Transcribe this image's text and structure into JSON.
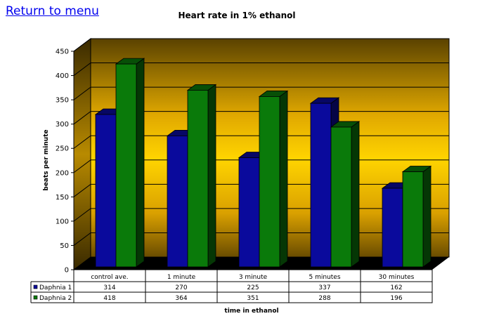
{
  "nav": {
    "return_label": "Return to menu"
  },
  "chart_data": {
    "type": "bar",
    "title": "Heart rate in 1% ethanol",
    "xlabel": "time in ethanol",
    "ylabel": "beats per minute",
    "ylim": [
      0,
      450
    ],
    "yticks": [
      "0",
      "50",
      "100",
      "150",
      "200",
      "250",
      "300",
      "350",
      "400",
      "450"
    ],
    "categories": [
      "control ave.",
      "1 minute",
      "3 minute",
      "5 minutes",
      "30 minutes"
    ],
    "series": [
      {
        "name": "Daphnia 1",
        "values": [
          314,
          270,
          225,
          337,
          162
        ],
        "color": "#0a0a9c"
      },
      {
        "name": "Daphnia 2",
        "values": [
          418,
          364,
          351,
          288,
          196
        ],
        "color": "#0a7a0a"
      }
    ],
    "grid": true,
    "legend": "data-table-left"
  }
}
